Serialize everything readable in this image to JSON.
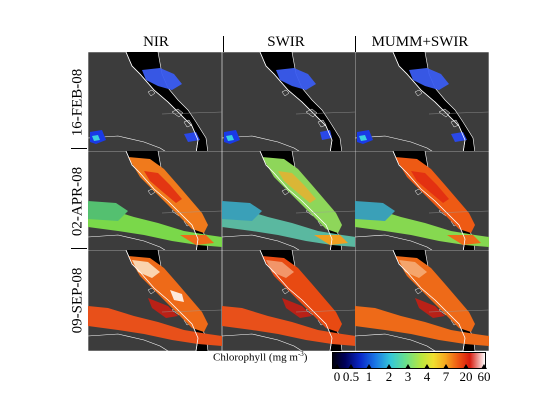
{
  "columns": [
    "NIR",
    "SWIR",
    "MUMM+SWIR"
  ],
  "rows": [
    "16-FEB-08",
    "02-APR-08",
    "09-SEP-08"
  ],
  "colorbar": {
    "title": "Chlorophyll (mg m",
    "title_sup": "-3",
    "title_end": ")",
    "ticks": [
      "0",
      "0.5",
      "1",
      "2",
      "3",
      "4",
      "7",
      "20",
      "60"
    ]
  },
  "colors": {
    "land": "#3c3c3c",
    "background": "#000000",
    "coast": "#ffffff"
  }
}
